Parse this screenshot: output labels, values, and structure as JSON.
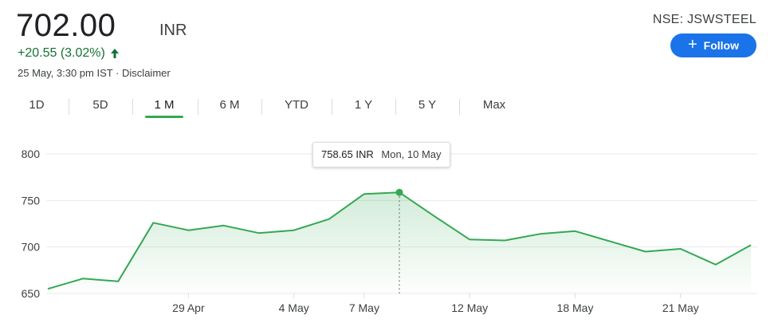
{
  "quote": {
    "price": "702.00",
    "currency": "INR",
    "change": "+20.55 (3.02%)",
    "timestamp": "25 May, 3:30 pm IST ·",
    "disclaimer": "Disclaimer",
    "exchange": "NSE: JSWSTEEL",
    "follow_label": "Follow",
    "up_color": "#137333",
    "accent": "#1a73e8"
  },
  "tabs": [
    {
      "label": "1D"
    },
    {
      "label": "5D"
    },
    {
      "label": "1 M",
      "active": true
    },
    {
      "label": "6 M"
    },
    {
      "label": "YTD"
    },
    {
      "label": "1 Y"
    },
    {
      "label": "5 Y"
    },
    {
      "label": "Max"
    }
  ],
  "tooltip": {
    "value": "758.65 INR",
    "date": "Mon, 10 May"
  },
  "chart_data": {
    "type": "area",
    "line_color": "#34a853",
    "ylim": [
      650,
      800
    ],
    "yticks": [
      800,
      750,
      700,
      650
    ],
    "grid": true,
    "xticks": [
      "29 Apr",
      "4 May",
      "7 May",
      "12 May",
      "18 May",
      "21 May"
    ],
    "xtick_index": [
      4,
      7,
      9,
      12,
      15,
      18
    ],
    "x_count": 21,
    "highlight_index": 10,
    "series": [
      {
        "values": [
          655,
          666,
          663,
          726,
          718,
          723,
          715,
          718,
          730,
          757,
          758.65,
          733,
          708,
          707,
          714,
          717,
          706,
          695,
          698,
          681,
          702
        ]
      }
    ]
  }
}
